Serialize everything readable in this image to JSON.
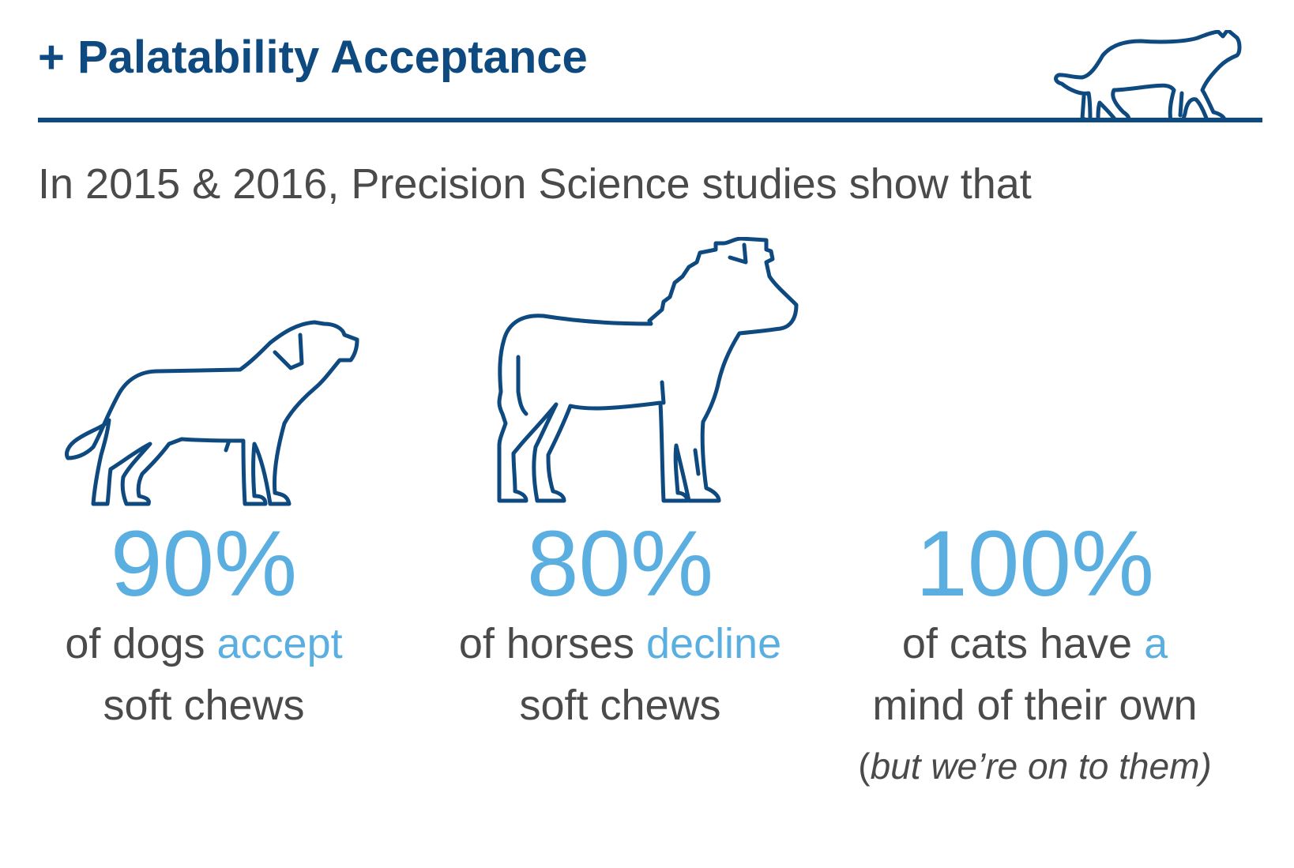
{
  "header": {
    "title": "+ Palatability Acceptance"
  },
  "intro": "In 2015 & 2016, Precision Science studies show that",
  "icons": {
    "header": "cat-icon",
    "dog": "dog-icon",
    "horse": "horse-icon"
  },
  "colors": {
    "primary": "#0e4a7f",
    "accent": "#5aaee0",
    "text": "#4a4a4a"
  },
  "stats": [
    {
      "percent": "90%",
      "pre": "of dogs ",
      "highlight": "accept",
      "post": "soft chews"
    },
    {
      "percent": "80%",
      "pre": "of horses ",
      "highlight": "decline",
      "post": "soft chews"
    },
    {
      "percent": "100%",
      "pre": "of cats have ",
      "highlight1": "a",
      "highlight2": "mind of their own",
      "note_open": "(",
      "note_italic": "but we’re on to them)"
    }
  ]
}
